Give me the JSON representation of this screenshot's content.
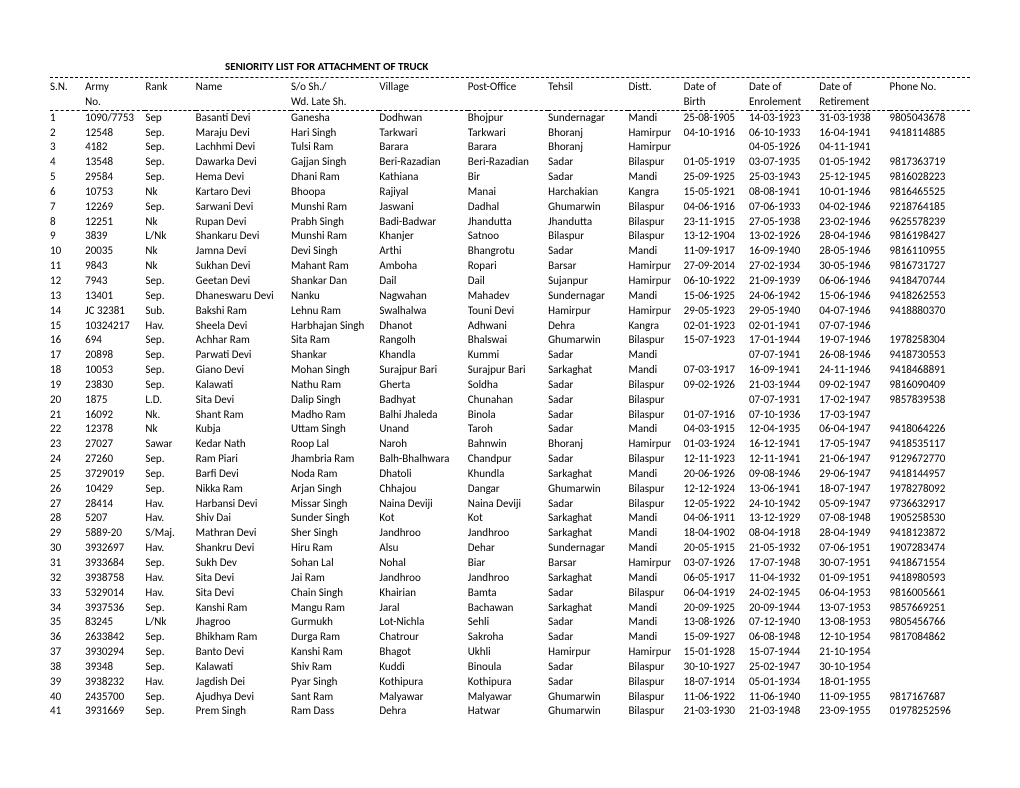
{
  "title": "SENIORITY LIST FOR ATTACHMENT OF TRUCK",
  "header": {
    "sn": "S.N.",
    "army1": "Army",
    "army2": "No.",
    "rank": "Rank",
    "name": "Name",
    "so1": "S/o Sh./",
    "so2": "Wd. Late Sh.",
    "village": "Village",
    "po": "Post-Office",
    "tehsil": "Tehsil",
    "distt": "Distt.",
    "dob1": "Date of",
    "dob2": "Birth",
    "doe1": "Date of",
    "doe2": "Enrolement",
    "dor1": "Date of",
    "dor2": "Retirement",
    "phone": "Phone No."
  },
  "rows": [
    {
      "sn": "1",
      "army": "1090/7753",
      "rank": "Sep",
      "name": "Basanti Devi",
      "so": "Ganesha",
      "village": "Dodhwan",
      "po": "Bhojpur",
      "tehsil": "Sundernagar",
      "distt": "Mandi",
      "dob": "25-08-1905",
      "doe": "14-03-1923",
      "dor": "31-03-1938",
      "phone": "9805043678"
    },
    {
      "sn": "2",
      "army": "12548",
      "rank": "Sep.",
      "name": "Maraju Devi",
      "so": "Hari Singh",
      "village": "Tarkwari",
      "po": "Tarkwari",
      "tehsil": "Bhoranj",
      "distt": "Hamirpur",
      "dob": "04-10-1916",
      "doe": "06-10-1933",
      "dor": "16-04-1941",
      "phone": "9418114885"
    },
    {
      "sn": "3",
      "army": "4182",
      "rank": "Sep.",
      "name": "Lachhmi Devi",
      "so": "Tulsi Ram",
      "village": "Barara",
      "po": "Barara",
      "tehsil": "Bhoranj",
      "distt": "Hamirpur",
      "dob": "",
      "doe": "04-05-1926",
      "dor": "04-11-1941",
      "phone": ""
    },
    {
      "sn": "4",
      "army": "13548",
      "rank": "Sep.",
      "name": "Dawarka Devi",
      "so": "Gajjan Singh",
      "village": "Beri-Razadian",
      "po": "Beri-Razadian",
      "tehsil": "Sadar",
      "distt": "Bilaspur",
      "dob": "01-05-1919",
      "doe": "03-07-1935",
      "dor": "01-05-1942",
      "phone": "9817363719"
    },
    {
      "sn": "5",
      "army": "29584",
      "rank": "Sep.",
      "name": "Hema Devi",
      "so": "Dhani Ram",
      "village": "Kathiana",
      "po": "Bir",
      "tehsil": "Sadar",
      "distt": "Mandi",
      "dob": "25-09-1925",
      "doe": "25-03-1943",
      "dor": "25-12-1945",
      "phone": "9816028223"
    },
    {
      "sn": "6",
      "army": "10753",
      "rank": "Nk",
      "name": "Kartaro Devi",
      "so": "Bhoopa",
      "village": "Rajiyal",
      "po": "Manai",
      "tehsil": "Harchakian",
      "distt": "Kangra",
      "dob": "15-05-1921",
      "doe": "08-08-1941",
      "dor": "10-01-1946",
      "phone": "9816465525"
    },
    {
      "sn": "7",
      "army": "12269",
      "rank": "Sep.",
      "name": "Sarwani Devi",
      "so": "Munshi Ram",
      "village": "Jaswani",
      "po": "Dadhal",
      "tehsil": "Ghumarwin",
      "distt": "Bilaspur",
      "dob": "04-06-1916",
      "doe": "07-06-1933",
      "dor": "04-02-1946",
      "phone": "9218764185"
    },
    {
      "sn": "8",
      "army": "12251",
      "rank": "Nk",
      "name": "Rupan Devi",
      "so": "Prabh Singh",
      "village": "Badi-Badwar",
      "po": "Jhandutta",
      "tehsil": "Jhandutta",
      "distt": "Bilaspur",
      "dob": "23-11-1915",
      "doe": "27-05-1938",
      "dor": "23-02-1946",
      "phone": "9625578239"
    },
    {
      "sn": "9",
      "army": "3839",
      "rank": "L/Nk",
      "name": "Shankaru Devi",
      "so": "Munshi Ram",
      "village": "Khanjer",
      "po": "Satnoo",
      "tehsil": "Bilaspur",
      "distt": "Bilaspur",
      "dob": "13-12-1904",
      "doe": "13-02-1926",
      "dor": "28-04-1946",
      "phone": "9816198427"
    },
    {
      "sn": "10",
      "army": "20035",
      "rank": "Nk",
      "name": "Jamna Devi",
      "so": "Devi Singh",
      "village": "Arthi",
      "po": "Bhangrotu",
      "tehsil": "Sadar",
      "distt": "Mandi",
      "dob": "11-09-1917",
      "doe": "16-09-1940",
      "dor": "28-05-1946",
      "phone": "9816110955"
    },
    {
      "sn": "11",
      "army": "9843",
      "rank": "Nk",
      "name": "Sukhan Devi",
      "so": "Mahant Ram",
      "village": "Amboha",
      "po": "Ropari",
      "tehsil": "Barsar",
      "distt": "Hamirpur",
      "dob": "27-09-2014",
      "doe": "27-02-1934",
      "dor": "30-05-1946",
      "phone": "9816731727"
    },
    {
      "sn": "12",
      "army": "7943",
      "rank": "Sep.",
      "name": "Geetan Devi",
      "so": "Shankar Dan",
      "village": "Dail",
      "po": "Dail",
      "tehsil": "Sujanpur",
      "distt": "Hamirpur",
      "dob": "06-10-1922",
      "doe": "21-09-1939",
      "dor": "06-06-1946",
      "phone": "9418470744"
    },
    {
      "sn": "13",
      "army": "13401",
      "rank": "Sep.",
      "name": "Dhaneswaru Devi",
      "so": "Nanku",
      "village": "Nagwahan",
      "po": "Mahadev",
      "tehsil": "Sundernagar",
      "distt": "Mandi",
      "dob": "15-06-1925",
      "doe": "24-06-1942",
      "dor": "15-06-1946",
      "phone": "9418262553"
    },
    {
      "sn": "14",
      "army": "JC 32381",
      "rank": "Sub.",
      "name": "Bakshi Ram",
      "so": "Lehnu Ram",
      "village": "Swalhalwa",
      "po": "Touni Devi",
      "tehsil": "Hamirpur",
      "distt": "Hamirpur",
      "dob": "29-05-1923",
      "doe": "29-05-1940",
      "dor": "04-07-1946",
      "phone": "9418880370"
    },
    {
      "sn": "15",
      "army": "10324217",
      "rank": "Hav.",
      "name": "Sheela Devi",
      "so": "Harbhajan Singh",
      "village": "Dhanot",
      "po": "Adhwani",
      "tehsil": "Dehra",
      "distt": "Kangra",
      "dob": "02-01-1923",
      "doe": "02-01-1941",
      "dor": "07-07-1946",
      "phone": ""
    },
    {
      "sn": "16",
      "army": "694",
      "rank": "Sep.",
      "name": "Achhar Ram",
      "so": "Sita Ram",
      "village": "Rangolh",
      "po": "Bhalswai",
      "tehsil": "Ghumarwin",
      "distt": "Bilaspur",
      "dob": "15-07-1923",
      "doe": "17-01-1944",
      "dor": "19-07-1946",
      "phone": "1978258304"
    },
    {
      "sn": "17",
      "army": "20898",
      "rank": "Sep.",
      "name": "Parwati Devi",
      "so": "Shankar",
      "village": "Khandla",
      "po": "Kummi",
      "tehsil": "Sadar",
      "distt": "Mandi",
      "dob": "",
      "doe": "07-07-1941",
      "dor": "26-08-1946",
      "phone": "9418730553"
    },
    {
      "sn": "18",
      "army": "10053",
      "rank": "Sep.",
      "name": "Giano Devi",
      "so": "Mohan Singh",
      "village": "Surajpur Bari",
      "po": "Surajpur Bari",
      "tehsil": "Sarkaghat",
      "distt": "Mandi",
      "dob": "07-03-1917",
      "doe": "16-09-1941",
      "dor": "24-11-1946",
      "phone": "9418468891"
    },
    {
      "sn": "19",
      "army": "23830",
      "rank": "Sep.",
      "name": "Kalawati",
      "so": "Nathu Ram",
      "village": "Gherta",
      "po": "Soldha",
      "tehsil": "Sadar",
      "distt": "Bilaspur",
      "dob": "09-02-1926",
      "doe": "21-03-1944",
      "dor": "09-02-1947",
      "phone": "9816090409"
    },
    {
      "sn": "20",
      "army": "1875",
      "rank": "L.D.",
      "name": "Sita Devi",
      "so": "Dalip Singh",
      "village": "Badhyat",
      "po": "Chunahan",
      "tehsil": "Sadar",
      "distt": "Bilaspur",
      "dob": "",
      "doe": "07-07-1931",
      "dor": "17-02-1947",
      "phone": "9857839538"
    },
    {
      "sn": "21",
      "army": "16092",
      "rank": "Nk.",
      "name": "Shant Ram",
      "so": "Madho Ram",
      "village": "Balhi Jhaleda",
      "po": "Binola",
      "tehsil": "Sadar",
      "distt": "Bilaspur",
      "dob": "01-07-1916",
      "doe": "07-10-1936",
      "dor": "17-03-1947",
      "phone": ""
    },
    {
      "sn": "22",
      "army": "12378",
      "rank": "Nk",
      "name": "Kubja",
      "so": "Uttam Singh",
      "village": "Unand",
      "po": "Taroh",
      "tehsil": "Sadar",
      "distt": "Mandi",
      "dob": "04-03-1915",
      "doe": "12-04-1935",
      "dor": "06-04-1947",
      "phone": "9418064226"
    },
    {
      "sn": "23",
      "army": "27027",
      "rank": "Sawar",
      "name": "Kedar Nath",
      "so": "Roop Lal",
      "village": "Naroh",
      "po": "Bahnwin",
      "tehsil": "Bhoranj",
      "distt": "Hamirpur",
      "dob": "01-03-1924",
      "doe": "16-12-1941",
      "dor": "17-05-1947",
      "phone": "9418535117"
    },
    {
      "sn": "24",
      "army": "27260",
      "rank": "Sep.",
      "name": "Ram Piari",
      "so": "Jhambria Ram",
      "village": "Balh-Bhalhwara",
      "po": "Chandpur",
      "tehsil": "Sadar",
      "distt": "Bilaspur",
      "dob": "12-11-1923",
      "doe": "12-11-1941",
      "dor": "21-06-1947",
      "phone": "9129672770"
    },
    {
      "sn": "25",
      "army": "3729019",
      "rank": "Sep.",
      "name": "Barfi Devi",
      "so": "Noda Ram",
      "village": "Dhatoli",
      "po": "Khundla",
      "tehsil": "Sarkaghat",
      "distt": "Mandi",
      "dob": "20-06-1926",
      "doe": "09-08-1946",
      "dor": "29-06-1947",
      "phone": "9418144957"
    },
    {
      "sn": "26",
      "army": "10429",
      "rank": "Sep.",
      "name": "Nikka Ram",
      "so": "Arjan Singh",
      "village": "Chhajou",
      "po": "Dangar",
      "tehsil": "Ghumarwin",
      "distt": "Bilaspur",
      "dob": "12-12-1924",
      "doe": "13-06-1941",
      "dor": "18-07-1947",
      "phone": "1978278092"
    },
    {
      "sn": "27",
      "army": "28414",
      "rank": "Hav.",
      "name": "Harbansi Devi",
      "so": "Missar Singh",
      "village": "Naina Deviji",
      "po": "Naina Deviji",
      "tehsil": "Sadar",
      "distt": "Bilaspur",
      "dob": "12-05-1922",
      "doe": "24-10-1942",
      "dor": "05-09-1947",
      "phone": "9736632917"
    },
    {
      "sn": "28",
      "army": "5207",
      "rank": "Hav.",
      "name": "Shiv Dai",
      "so": "Sunder Singh",
      "village": "Kot",
      "po": "Kot",
      "tehsil": "Sarkaghat",
      "distt": "Mandi",
      "dob": "04-06-1911",
      "doe": "13-12-1929",
      "dor": "07-08-1948",
      "phone": "1905258530"
    },
    {
      "sn": "29",
      "army": "5889-20",
      "rank": "S/Maj.",
      "name": "Mathran Devi",
      "so": "Sher Singh",
      "village": "Jandhroo",
      "po": "Jandhroo",
      "tehsil": "Sarkaghat",
      "distt": "Mandi",
      "dob": "18-04-1902",
      "doe": "08-04-1918",
      "dor": "28-04-1949",
      "phone": "9418123872"
    },
    {
      "sn": "30",
      "army": "3932697",
      "rank": "Hav.",
      "name": "Shankru Devi",
      "so": "Hiru Ram",
      "village": "Alsu",
      "po": "Dehar",
      "tehsil": "Sundernagar",
      "distt": "Mandi",
      "dob": "20-05-1915",
      "doe": "21-05-1932",
      "dor": "07-06-1951",
      "phone": "1907283474"
    },
    {
      "sn": "31",
      "army": "3933684",
      "rank": "Sep.",
      "name": "Sukh Dev",
      "so": "Sohan Lal",
      "village": "Nohal",
      "po": "Biar",
      "tehsil": "Barsar",
      "distt": "Hamirpur",
      "dob": "03-07-1926",
      "doe": "17-07-1948",
      "dor": "30-07-1951",
      "phone": "9418671554"
    },
    {
      "sn": "32",
      "army": "3938758",
      "rank": "Hav.",
      "name": "Sita Devi",
      "so": "Jai Ram",
      "village": "Jandhroo",
      "po": "Jandhroo",
      "tehsil": "Sarkaghat",
      "distt": "Mandi",
      "dob": "06-05-1917",
      "doe": "11-04-1932",
      "dor": "01-09-1951",
      "phone": "9418980593"
    },
    {
      "sn": "33",
      "army": "5329014",
      "rank": "Hav.",
      "name": "Sita Devi",
      "so": "Chain Singh",
      "village": "Khairian",
      "po": "Bamta",
      "tehsil": "Sadar",
      "distt": "Bilaspur",
      "dob": "06-04-1919",
      "doe": "24-02-1945",
      "dor": "06-04-1953",
      "phone": "9816005661"
    },
    {
      "sn": "34",
      "army": "3937536",
      "rank": "Sep.",
      "name": "Kanshi Ram",
      "so": "Mangu Ram",
      "village": "Jaral",
      "po": "Bachawan",
      "tehsil": "Sarkaghat",
      "distt": "Mandi",
      "dob": "20-09-1925",
      "doe": "20-09-1944",
      "dor": "13-07-1953",
      "phone": "9857669251"
    },
    {
      "sn": "35",
      "army": "83245",
      "rank": "L/Nk",
      "name": "Jhagroo",
      "so": "Gurmukh",
      "village": "Lot-Nichla",
      "po": "Sehli",
      "tehsil": "Sadar",
      "distt": "Mandi",
      "dob": "13-08-1926",
      "doe": "07-12-1940",
      "dor": "13-08-1953",
      "phone": "9805456766"
    },
    {
      "sn": "36",
      "army": "2633842",
      "rank": "Sep.",
      "name": "Bhikham Ram",
      "so": "Durga Ram",
      "village": "Chatrour",
      "po": "Sakroha",
      "tehsil": "Sadar",
      "distt": "Mandi",
      "dob": "15-09-1927",
      "doe": "06-08-1948",
      "dor": "12-10-1954",
      "phone": "9817084862"
    },
    {
      "sn": "37",
      "army": "3930294",
      "rank": "Sep.",
      "name": "Banto Devi",
      "so": "Kanshi Ram",
      "village": "Bhagot",
      "po": "Ukhli",
      "tehsil": "Hamirpur",
      "distt": "Hamirpur",
      "dob": "15-01-1928",
      "doe": "15-07-1944",
      "dor": "21-10-1954",
      "phone": ""
    },
    {
      "sn": "38",
      "army": "39348",
      "rank": "Sep.",
      "name": "Kalawati",
      "so": "Shiv Ram",
      "village": "Kuddi",
      "po": "Binoula",
      "tehsil": "Sadar",
      "distt": "Bilaspur",
      "dob": "30-10-1927",
      "doe": "25-02-1947",
      "dor": "30-10-1954",
      "phone": ""
    },
    {
      "sn": "39",
      "army": "3938232",
      "rank": "Hav.",
      "name": "Jagdish Dei",
      "so": "Pyar Singh",
      "village": "Kothipura",
      "po": "Kothipura",
      "tehsil": "Sadar",
      "distt": "Bilaspur",
      "dob": "18-07-1914",
      "doe": "05-01-1934",
      "dor": "18-01-1955",
      "phone": ""
    },
    {
      "sn": "40",
      "army": "2435700",
      "rank": "Sep.",
      "name": "Ajudhya Devi",
      "so": "Sant Ram",
      "village": "Malyawar",
      "po": "Malyawar",
      "tehsil": "Ghumarwin",
      "distt": "Bilaspur",
      "dob": "11-06-1922",
      "doe": "11-06-1940",
      "dor": "11-09-1955",
      "phone": "9817167687"
    },
    {
      "sn": "41",
      "army": "3931669",
      "rank": "Sep.",
      "name": "Prem Singh",
      "so": "Ram Dass",
      "village": "Dehra",
      "po": "Hatwar",
      "tehsil": "Ghumarwin",
      "distt": "Bilaspur",
      "dob": "21-03-1930",
      "doe": "21-03-1948",
      "dor": "23-09-1955",
      "phone": "01978252596"
    }
  ]
}
